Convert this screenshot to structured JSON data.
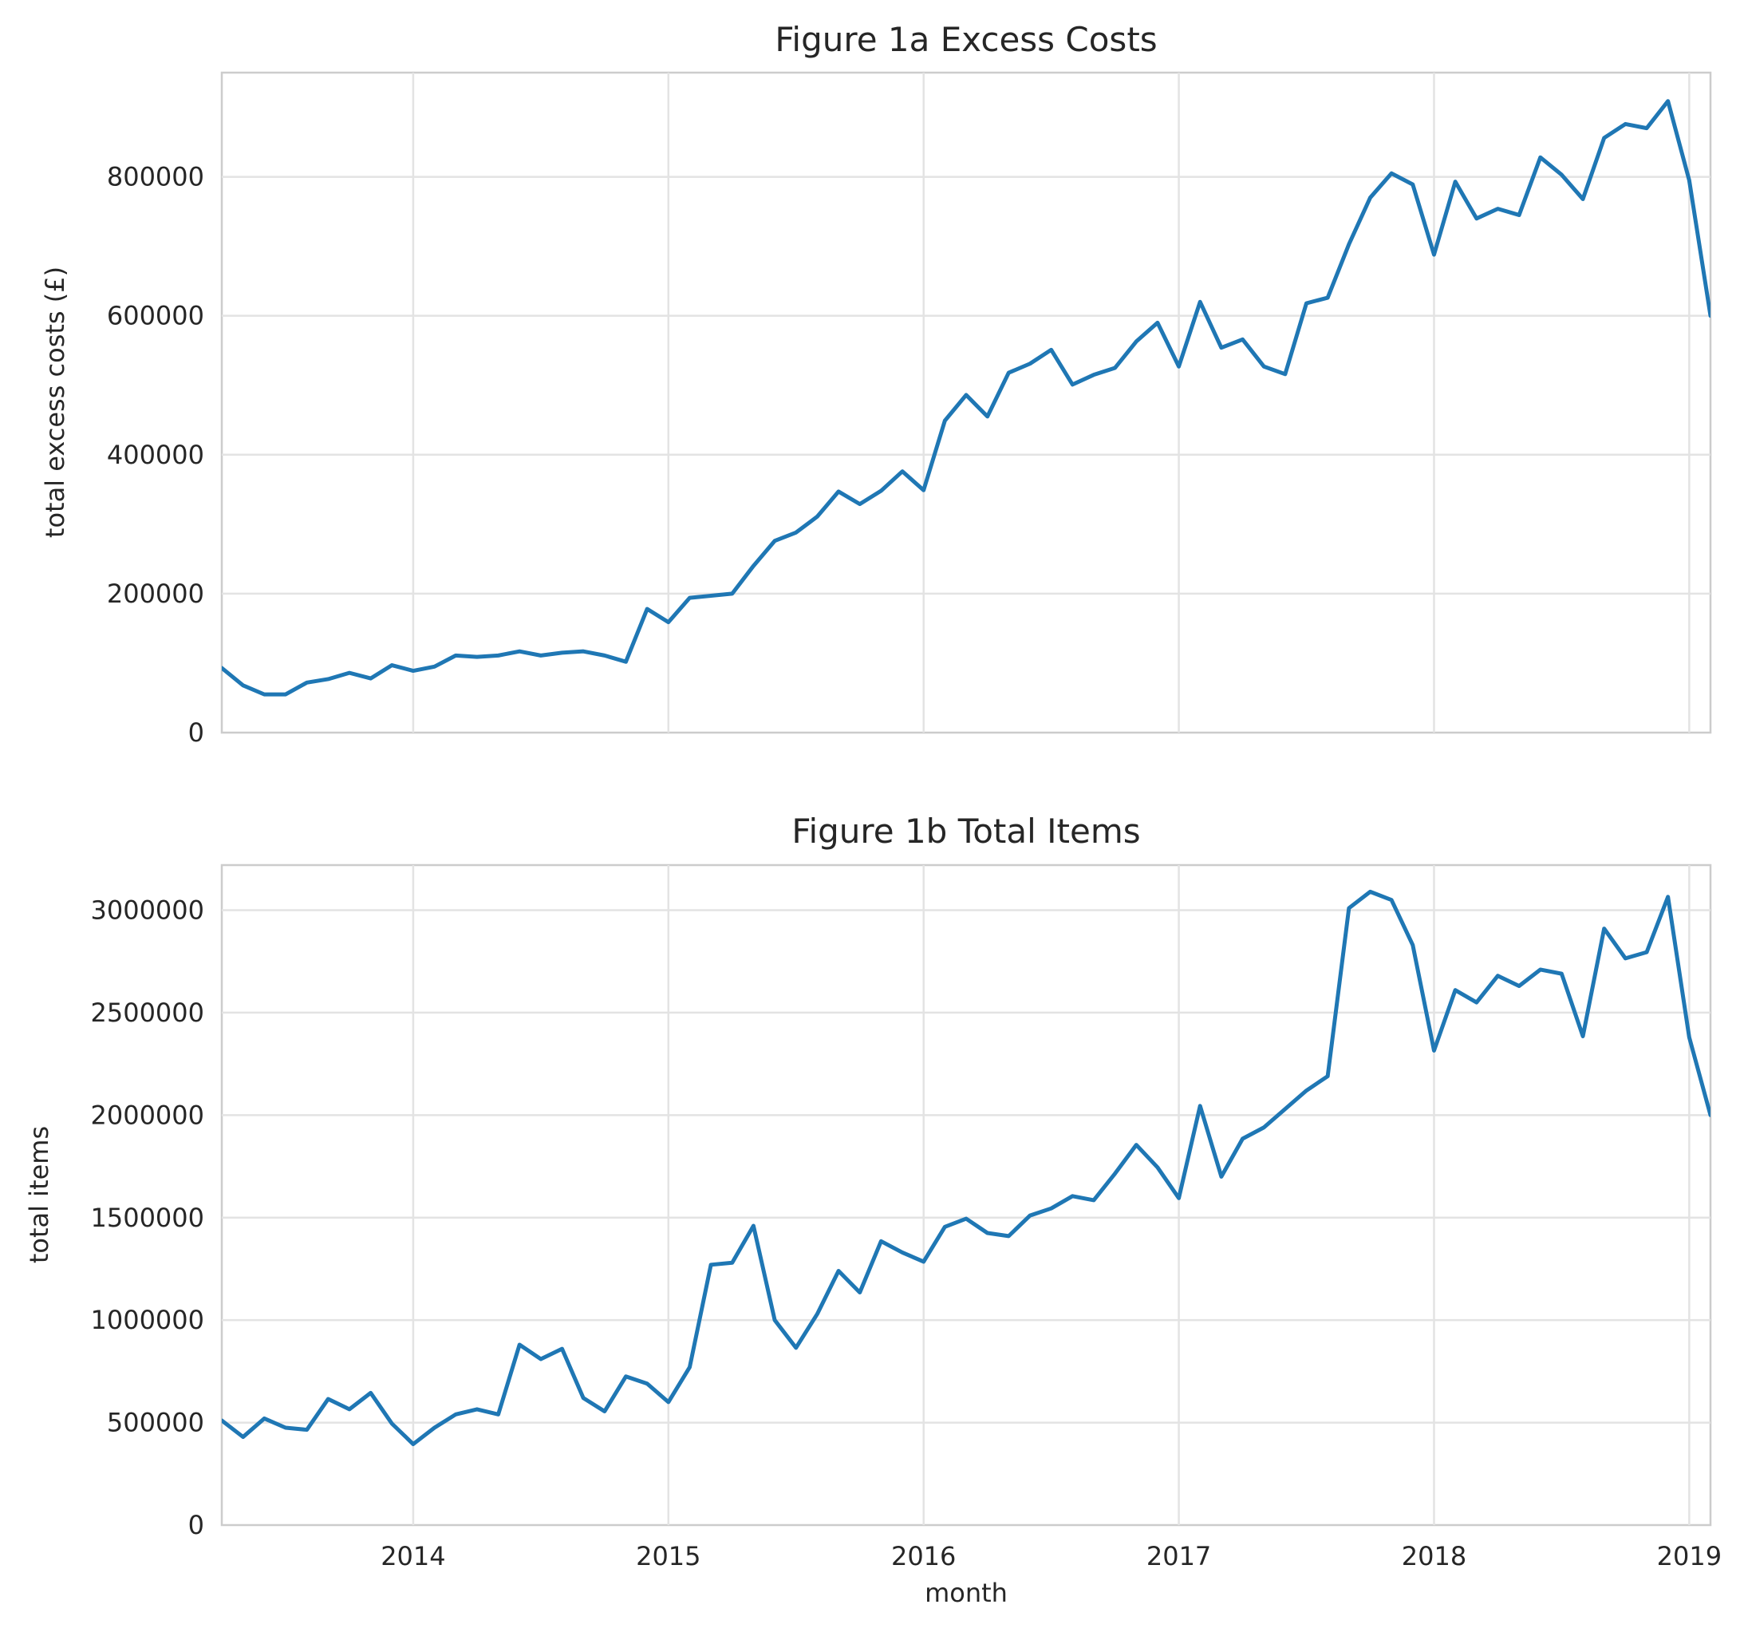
{
  "chart_data": [
    {
      "type": "line",
      "title": "Figure 1a Excess Costs",
      "xlabel": "",
      "ylabel": "total excess costs (£)",
      "xlim": [
        "2013-04",
        "2019-02"
      ],
      "ylim": [
        0,
        950000
      ],
      "yticks": [
        0,
        200000,
        400000,
        600000,
        800000
      ],
      "ytick_labels": [
        "0",
        "200000",
        "400000",
        "600000",
        "800000"
      ],
      "xticks": [
        "2014-01",
        "2015-01",
        "2016-01",
        "2017-01",
        "2018-01",
        "2019-01"
      ],
      "xtick_labels": [],
      "grid": true,
      "line_color": "#1f77b4",
      "series": [
        {
          "x": [
            "2013-04",
            "2013-05",
            "2013-06",
            "2013-07",
            "2013-08",
            "2013-09",
            "2013-10",
            "2013-11",
            "2013-12",
            "2014-01",
            "2014-02",
            "2014-03",
            "2014-04",
            "2014-05",
            "2014-06",
            "2014-07",
            "2014-08",
            "2014-09",
            "2014-10",
            "2014-11",
            "2014-12",
            "2015-01",
            "2015-02",
            "2015-03",
            "2015-04",
            "2015-05",
            "2015-06",
            "2015-07",
            "2015-08",
            "2015-09",
            "2015-10",
            "2015-11",
            "2015-12",
            "2016-01",
            "2016-02",
            "2016-03",
            "2016-04",
            "2016-05",
            "2016-06",
            "2016-07",
            "2016-08",
            "2016-09",
            "2016-10",
            "2016-11",
            "2016-12",
            "2017-01",
            "2017-02",
            "2017-03",
            "2017-04",
            "2017-05",
            "2017-06",
            "2017-07",
            "2017-08",
            "2017-09",
            "2017-10",
            "2017-11",
            "2017-12",
            "2018-01",
            "2018-02",
            "2018-03",
            "2018-04",
            "2018-05",
            "2018-06",
            "2018-07",
            "2018-08",
            "2018-09",
            "2018-10",
            "2018-11",
            "2018-12",
            "2019-01",
            "2019-02"
          ],
          "values": [
            93000,
            68000,
            55000,
            55000,
            72000,
            77000,
            86000,
            78000,
            97000,
            89000,
            95000,
            111000,
            109000,
            111000,
            117000,
            111000,
            115000,
            117000,
            111000,
            102000,
            178000,
            159000,
            194000,
            197000,
            200000,
            240000,
            276000,
            288000,
            311000,
            347000,
            329000,
            348000,
            376000,
            349000,
            449000,
            486000,
            455000,
            518000,
            531000,
            551000,
            501000,
            515000,
            525000,
            563000,
            590000,
            527000,
            620000,
            554000,
            566000,
            527000,
            516000,
            618000,
            626000,
            703000,
            770000,
            805000,
            789000,
            688000,
            793000,
            740000,
            754000,
            745000,
            828000,
            803000,
            768000,
            856000,
            876000,
            870000,
            909000,
            795000,
            600000
          ]
        }
      ]
    },
    {
      "type": "line",
      "title": "Figure 1b Total Items",
      "xlabel": "month",
      "ylabel": "total items",
      "xlim": [
        "2013-04",
        "2019-02"
      ],
      "ylim": [
        0,
        3220000
      ],
      "yticks": [
        0,
        500000,
        1000000,
        1500000,
        2000000,
        2500000,
        3000000
      ],
      "ytick_labels": [
        "0",
        "500000",
        "1000000",
        "1500000",
        "2000000",
        "2500000",
        "3000000"
      ],
      "xticks": [
        "2014-01",
        "2015-01",
        "2016-01",
        "2017-01",
        "2018-01",
        "2019-01"
      ],
      "xtick_labels": [
        "2014",
        "2015",
        "2016",
        "2017",
        "2018",
        "2019"
      ],
      "grid": true,
      "line_color": "#1f77b4",
      "series": [
        {
          "x": [
            "2013-04",
            "2013-05",
            "2013-06",
            "2013-07",
            "2013-08",
            "2013-09",
            "2013-10",
            "2013-11",
            "2013-12",
            "2014-01",
            "2014-02",
            "2014-03",
            "2014-04",
            "2014-05",
            "2014-06",
            "2014-07",
            "2014-08",
            "2014-09",
            "2014-10",
            "2014-11",
            "2014-12",
            "2015-01",
            "2015-02",
            "2015-03",
            "2015-04",
            "2015-05",
            "2015-06",
            "2015-07",
            "2015-08",
            "2015-09",
            "2015-10",
            "2015-11",
            "2015-12",
            "2016-01",
            "2016-02",
            "2016-03",
            "2016-04",
            "2016-05",
            "2016-06",
            "2016-07",
            "2016-08",
            "2016-09",
            "2016-10",
            "2016-11",
            "2016-12",
            "2017-01",
            "2017-02",
            "2017-03",
            "2017-04",
            "2017-05",
            "2017-06",
            "2017-07",
            "2017-08",
            "2017-09",
            "2017-10",
            "2017-11",
            "2017-12",
            "2018-01",
            "2018-02",
            "2018-03",
            "2018-04",
            "2018-05",
            "2018-06",
            "2018-07",
            "2018-08",
            "2018-09",
            "2018-10",
            "2018-11",
            "2018-12",
            "2019-01",
            "2019-02"
          ],
          "values": [
            510000,
            430000,
            520000,
            475000,
            465000,
            615000,
            565000,
            645000,
            495000,
            395000,
            475000,
            540000,
            565000,
            540000,
            880000,
            810000,
            860000,
            620000,
            555000,
            725000,
            690000,
            600000,
            770000,
            1270000,
            1280000,
            1460000,
            1000000,
            865000,
            1030000,
            1240000,
            1135000,
            1385000,
            1330000,
            1285000,
            1455000,
            1495000,
            1425000,
            1410000,
            1510000,
            1545000,
            1605000,
            1585000,
            1715000,
            1855000,
            1745000,
            1595000,
            2045000,
            1700000,
            1885000,
            1940000,
            2030000,
            2120000,
            2190000,
            3010000,
            3090000,
            3050000,
            2830000,
            2315000,
            2610000,
            2550000,
            2680000,
            2630000,
            2710000,
            2690000,
            2385000,
            2910000,
            2765000,
            2795000,
            3065000,
            2380000,
            2000000
          ]
        }
      ]
    }
  ]
}
